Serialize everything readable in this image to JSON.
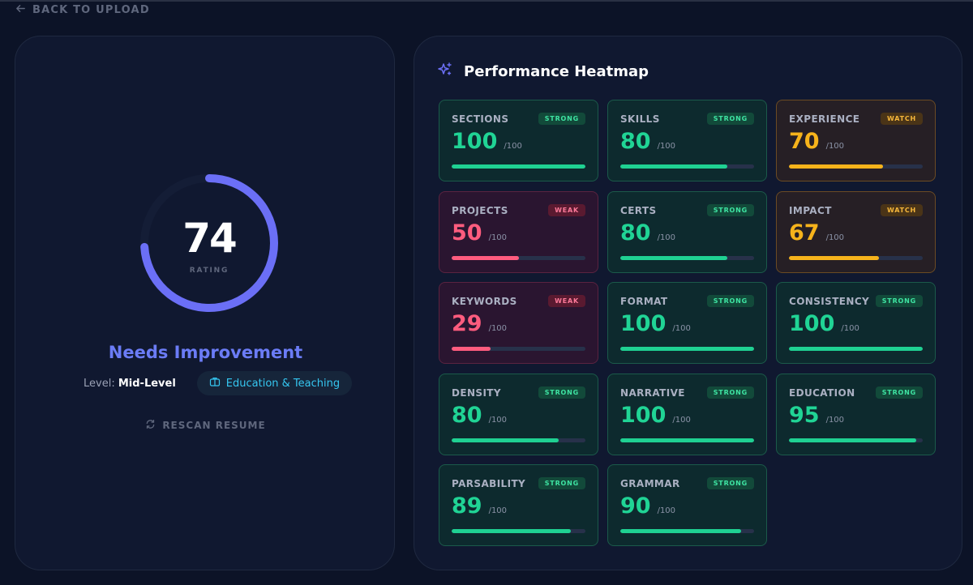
{
  "nav": {
    "back_label": "BACK TO UPLOAD"
  },
  "summary": {
    "score": "74",
    "score_label": "RATING",
    "score_fraction": 0.74,
    "verdict": "Needs Improvement",
    "level_prefix": "Level:",
    "level_value": "Mid-Level",
    "industry": "Education & Teaching",
    "rescan_label": "RESCAN RESUME"
  },
  "heatmap": {
    "title": "Performance Heatmap",
    "denominator": "/100",
    "tiles": [
      {
        "name": "SECTIONS",
        "status": "STRONG",
        "value": "100"
      },
      {
        "name": "SKILLS",
        "status": "STRONG",
        "value": "80"
      },
      {
        "name": "EXPERIENCE",
        "status": "WATCH",
        "value": "70"
      },
      {
        "name": "PROJECTS",
        "status": "WEAK",
        "value": "50"
      },
      {
        "name": "CERTS",
        "status": "STRONG",
        "value": "80"
      },
      {
        "name": "IMPACT",
        "status": "WATCH",
        "value": "67"
      },
      {
        "name": "KEYWORDS",
        "status": "WEAK",
        "value": "29"
      },
      {
        "name": "FORMAT",
        "status": "STRONG",
        "value": "100"
      },
      {
        "name": "CONSISTENCY",
        "status": "STRONG",
        "value": "100"
      },
      {
        "name": "DENSITY",
        "status": "STRONG",
        "value": "80"
      },
      {
        "name": "NARRATIVE",
        "status": "STRONG",
        "value": "100"
      },
      {
        "name": "EDUCATION",
        "status": "STRONG",
        "value": "95"
      },
      {
        "name": "PARSABILITY",
        "status": "STRONG",
        "value": "89"
      },
      {
        "name": "GRAMMAR",
        "status": "STRONG",
        "value": "90"
      }
    ]
  },
  "colors": {
    "strong": "#20d495",
    "weak": "#ff5c7e",
    "watch": "#f6b31b",
    "gauge": "#6b6ff6"
  },
  "icons": {
    "back": "arrow-left-icon",
    "industry": "briefcase-icon",
    "rescan": "refresh-icon",
    "heatmap": "sparkle-icon"
  }
}
